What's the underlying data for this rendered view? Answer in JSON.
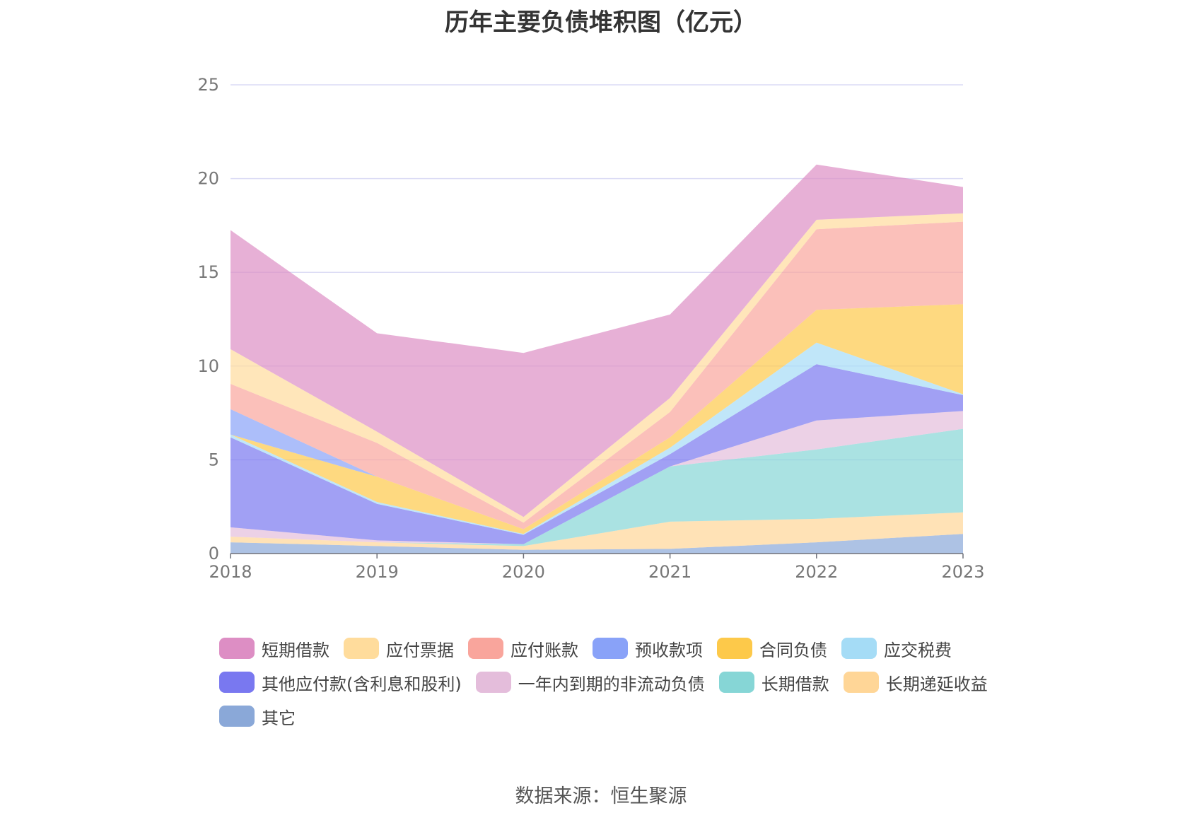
{
  "chart_data": {
    "type": "area",
    "stacked": true,
    "title": "历年主要负债堆积图（亿元）",
    "x": [
      "2018",
      "2019",
      "2020",
      "2021",
      "2022",
      "2023"
    ],
    "ylim": [
      0,
      25
    ],
    "yticks": [
      "0",
      "5",
      "10",
      "15",
      "20",
      "25"
    ],
    "grid": true,
    "legend_position": "bottom",
    "series": [
      {
        "name": "其它",
        "color": "#8aa8d8",
        "values": [
          0.6,
          0.4,
          0.2,
          0.25,
          0.6,
          1.05
        ]
      },
      {
        "name": "长期递延收益",
        "color": "#ffd697",
        "values": [
          0.3,
          0.2,
          0.2,
          1.45,
          1.25,
          1.15
        ]
      },
      {
        "name": "长期借款",
        "color": "#86d6d6",
        "values": [
          0.0,
          0.0,
          0.1,
          2.95,
          3.7,
          4.45
        ]
      },
      {
        "name": "一年内到期的非流动负债",
        "color": "#e4bddb",
        "values": [
          0.5,
          0.1,
          0.0,
          0.0,
          1.55,
          0.95
        ]
      },
      {
        "name": "其他应付款(含利息和股利)",
        "color": "#7978f0",
        "values": [
          4.8,
          1.95,
          0.5,
          0.65,
          3.0,
          0.85
        ]
      },
      {
        "name": "应交税费",
        "color": "#a5dcf6",
        "values": [
          0.15,
          0.1,
          0.05,
          0.35,
          1.15,
          0.05
        ]
      },
      {
        "name": "合同负债",
        "color": "#fdc94a",
        "values": [
          0.0,
          1.35,
          0.25,
          0.55,
          1.75,
          4.8
        ]
      },
      {
        "name": "预收款项",
        "color": "#89a2f8",
        "values": [
          1.35,
          0.0,
          0.0,
          0.0,
          0.0,
          0.0
        ]
      },
      {
        "name": "应付账款",
        "color": "#f9a59c",
        "values": [
          1.35,
          1.8,
          0.35,
          1.35,
          4.3,
          4.4
        ]
      },
      {
        "name": "应付票据",
        "color": "#ffdc9c",
        "values": [
          1.85,
          0.6,
          0.3,
          0.75,
          0.5,
          0.45
        ]
      },
      {
        "name": "短期借款",
        "color": "#dd8ec4",
        "values": [
          6.35,
          5.25,
          8.75,
          4.45,
          2.95,
          1.4
        ]
      }
    ]
  },
  "legend_order": [
    "短期借款",
    "应付票据",
    "应付账款",
    "预收款项",
    "合同负债",
    "应交税费",
    "其他应付款(含利息和股利)",
    "一年内到期的非流动负债",
    "长期借款",
    "长期递延收益",
    "其它"
  ],
  "colors": {
    "grid": "#dcdcf5",
    "axis": "#6e7079",
    "tick_text": "#777777",
    "title_text": "#333333"
  },
  "source": "数据来源：恒生聚源"
}
